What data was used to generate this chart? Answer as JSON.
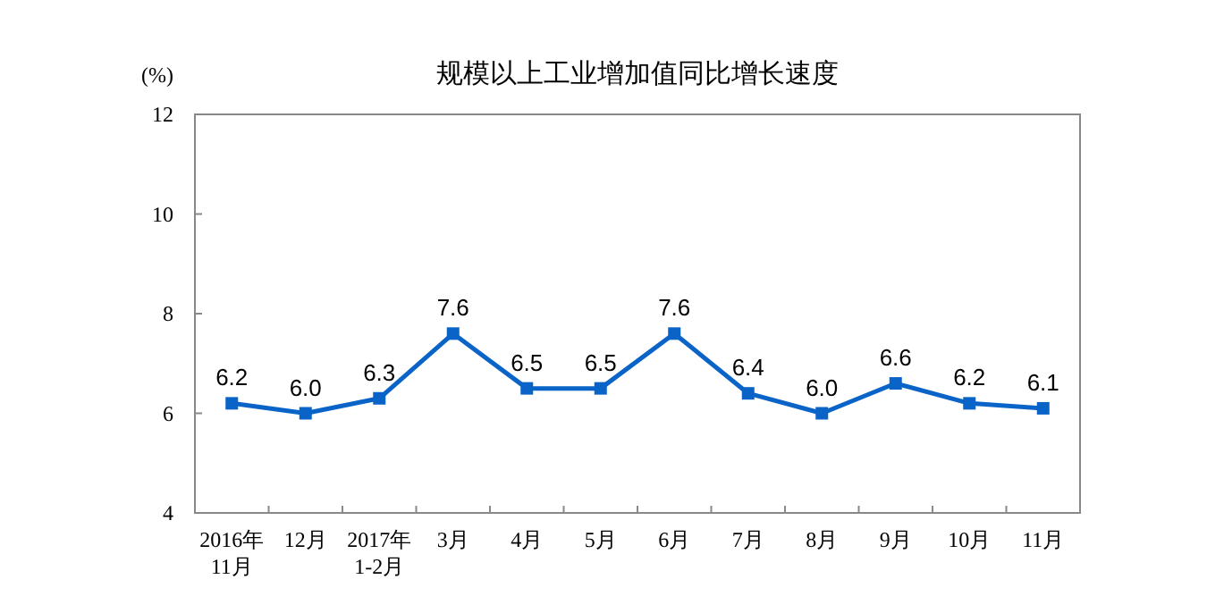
{
  "chart_data": {
    "type": "line",
    "title": "规模以上工业增加值同比增长速度",
    "ylabel": "(%)",
    "categories": [
      "2016年\n11月",
      "12月",
      "2017年\n1-2月",
      "3月",
      "4月",
      "5月",
      "6月",
      "7月",
      "8月",
      "9月",
      "10月",
      "11月"
    ],
    "series": [
      {
        "color": "#0a64c8",
        "values": [
          6.2,
          6.0,
          6.3,
          7.6,
          6.5,
          6.5,
          7.6,
          6.4,
          6.0,
          6.6,
          6.2,
          6.1
        ],
        "value_labels": [
          "6.2",
          "6.0",
          "6.3",
          "7.6",
          "6.5",
          "6.5",
          "7.6",
          "6.4",
          "6.0",
          "6.6",
          "6.2",
          "6.1"
        ]
      }
    ],
    "ylim": [
      4,
      12
    ],
    "yticks": [
      4,
      6,
      8,
      10,
      12
    ],
    "grid": false,
    "marker": "square",
    "line_style": "solid"
  }
}
